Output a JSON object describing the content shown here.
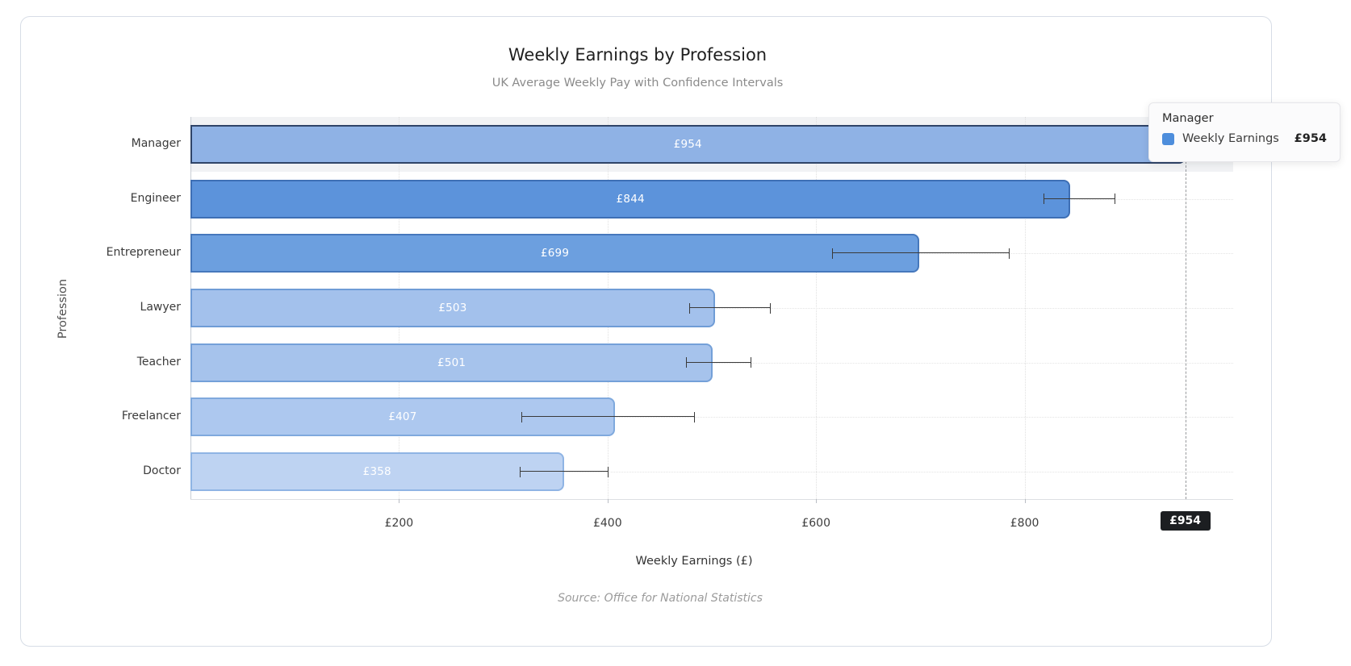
{
  "header": {
    "title": "Weekly Earnings by Profession",
    "subtitle": "UK Average Weekly Pay with Confidence Intervals"
  },
  "footer": {
    "xlabel": "Weekly Earnings (£)",
    "source_note": "Source: Office for National Statistics"
  },
  "tooltip": {
    "title": "Manager",
    "series": "Weekly Earnings",
    "value_label": "£954",
    "swatch_color": "#4e8edc"
  },
  "chart_data": {
    "type": "bar",
    "orientation": "horizontal",
    "title": "Weekly Earnings by Profession",
    "subtitle": "UK Average Weekly Pay with Confidence Intervals",
    "xlabel": "Weekly Earnings (£)",
    "ylabel": "Profession",
    "source_note": "Source: Office for National Statistics",
    "series_name": "Weekly Earnings",
    "xlim": [
      0,
      1000
    ],
    "grid": true,
    "x_ticks": [
      {
        "value": 200,
        "label": "£200"
      },
      {
        "value": 400,
        "label": "£400"
      },
      {
        "value": 600,
        "label": "£600"
      },
      {
        "value": 800,
        "label": "£800"
      }
    ],
    "categories": [
      "Manager",
      "Engineer",
      "Entrepreneur",
      "Lawyer",
      "Teacher",
      "Freelancer",
      "Doctor"
    ],
    "bars": [
      {
        "label": "Manager",
        "value": 954,
        "value_label": "£954",
        "ci_low": 920,
        "ci_high": 990,
        "fill": "#8fb2e5",
        "border": "#2f4468",
        "highlighted": true
      },
      {
        "label": "Engineer",
        "value": 844,
        "value_label": "£844",
        "ci_low": 818,
        "ci_high": 886,
        "fill": "#5c93db",
        "border": "#3e6fb5",
        "highlighted": false
      },
      {
        "label": "Entrepreneur",
        "value": 699,
        "value_label": "£699",
        "ci_low": 615,
        "ci_high": 785,
        "fill": "#6c9fdf",
        "border": "#4678bc",
        "highlighted": false
      },
      {
        "label": "Lawyer",
        "value": 503,
        "value_label": "£503",
        "ci_low": 478,
        "ci_high": 556,
        "fill": "#a3c1ec",
        "border": "#6f9cd6",
        "highlighted": false
      },
      {
        "label": "Teacher",
        "value": 501,
        "value_label": "£501",
        "ci_low": 475,
        "ci_high": 537,
        "fill": "#a6c3ec",
        "border": "#74a0d8",
        "highlighted": false
      },
      {
        "label": "Freelancer",
        "value": 407,
        "value_label": "£407",
        "ci_low": 317,
        "ci_high": 483,
        "fill": "#adc8ef",
        "border": "#7fa9dd",
        "highlighted": false
      },
      {
        "label": "Doctor",
        "value": 358,
        "value_label": "£358",
        "ci_low": 316,
        "ci_high": 400,
        "fill": "#bed3f2",
        "border": "#8fb4e4",
        "highlighted": false
      }
    ],
    "reference_line": {
      "value": 954,
      "label": "£954",
      "style": "dashed",
      "color": "#97999c",
      "badge_bg": "#1c1e21"
    },
    "highlight_band_color": "#f1f2f4",
    "legend_position": "none"
  }
}
